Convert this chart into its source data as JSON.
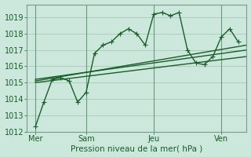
{
  "xlabel": "Pression niveau de la mer( hPa )",
  "background_color": "#cce8dc",
  "grid_color": "#a8c8b8",
  "line_color": "#1a5c2a",
  "ylim": [
    1012,
    1019.8
  ],
  "xlim": [
    0,
    13.0
  ],
  "xtick_labels": [
    "Mer",
    "Sam",
    "Jeu",
    "Ven"
  ],
  "xtick_positions": [
    0.5,
    3.5,
    7.5,
    11.5
  ],
  "ytick_positions": [
    1012,
    1013,
    1014,
    1015,
    1016,
    1017,
    1018,
    1019
  ],
  "vline_positions": [
    0.5,
    3.5,
    7.5,
    11.5
  ],
  "series1_x": [
    0.5,
    1.0,
    1.5,
    2.0,
    2.5,
    3.0,
    3.5,
    4.0,
    4.5,
    5.0,
    5.5,
    6.0,
    6.5,
    7.0,
    7.5,
    8.0,
    8.5,
    9.0,
    9.5,
    10.0,
    10.5,
    11.0,
    11.5,
    12.0,
    12.5
  ],
  "series1_y": [
    1012.3,
    1013.8,
    1015.2,
    1015.3,
    1015.1,
    1013.8,
    1014.4,
    1016.8,
    1017.3,
    1017.5,
    1018.0,
    1018.3,
    1018.0,
    1017.3,
    1019.2,
    1019.3,
    1019.1,
    1019.3,
    1017.0,
    1016.2,
    1016.1,
    1016.6,
    1017.8,
    1018.3,
    1017.5
  ],
  "series2_x": [
    0.5,
    13.0
  ],
  "series2_y": [
    1015.1,
    1017.3
  ],
  "series3_x": [
    0.5,
    13.0
  ],
  "series3_y": [
    1015.2,
    1017.0
  ],
  "series4_x": [
    0.5,
    13.0
  ],
  "series4_y": [
    1015.0,
    1016.6
  ],
  "marker_size": 2.5
}
